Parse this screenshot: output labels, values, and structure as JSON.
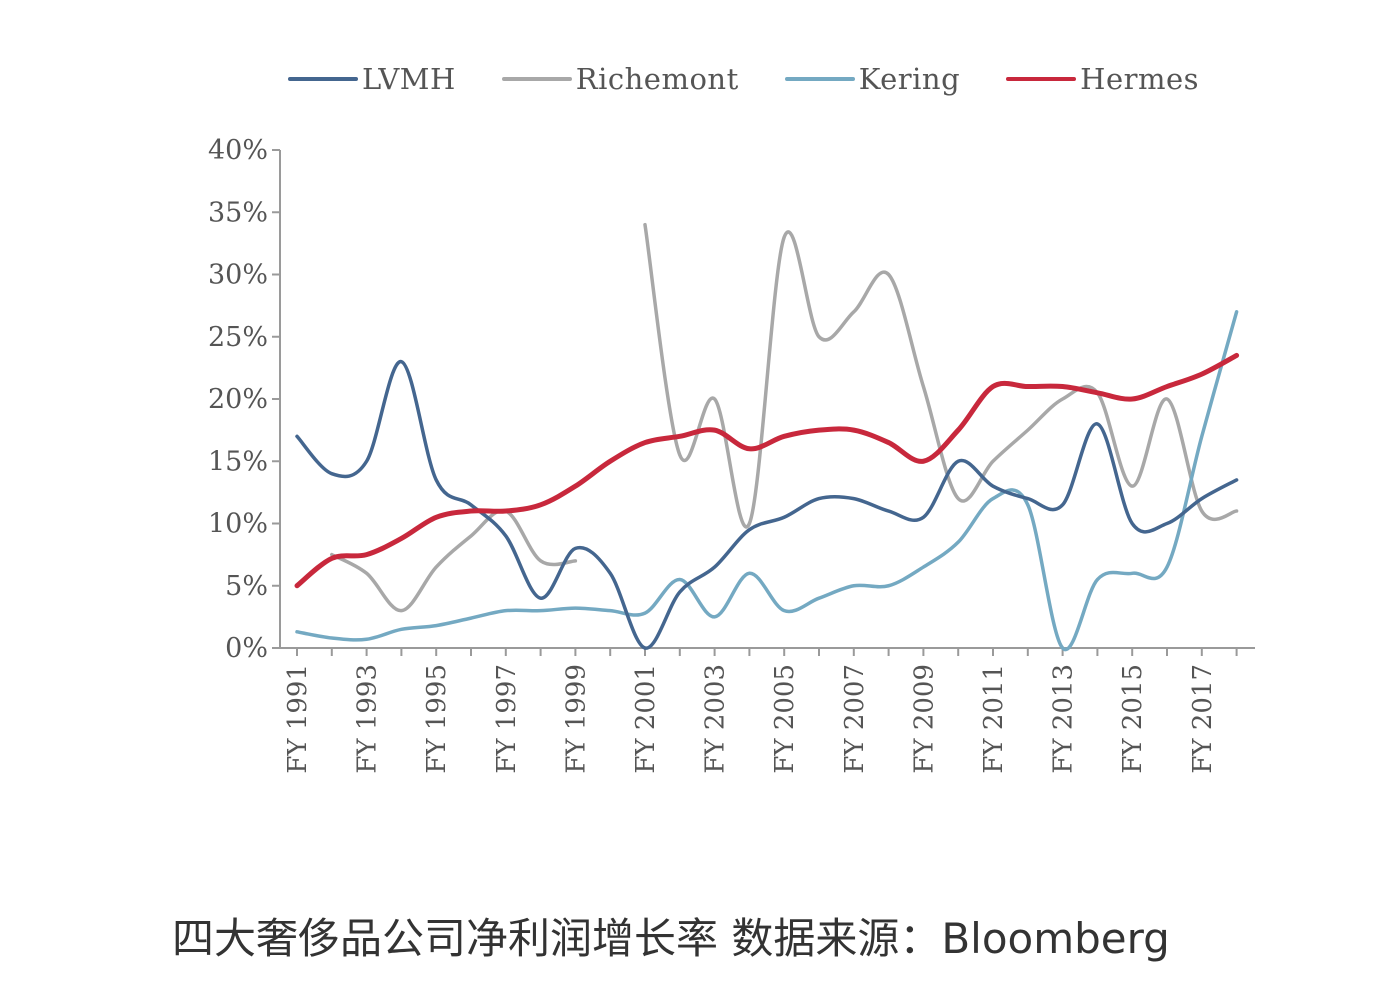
{
  "caption": "四大奢侈品公司净利润增长率 数据来源：Bloomberg",
  "chart_data": {
    "type": "line",
    "title": "",
    "xlabel": "",
    "ylabel": "",
    "x": [
      1991,
      1992,
      1993,
      1994,
      1995,
      1996,
      1997,
      1998,
      1999,
      2000,
      2001,
      2002,
      2003,
      2004,
      2005,
      2006,
      2007,
      2008,
      2009,
      2010,
      2011,
      2012,
      2013,
      2014,
      2015,
      2016,
      2017,
      2018
    ],
    "x_tick_labels": [
      "FY 1991",
      "FY 1993",
      "FY 1995",
      "FY 1997",
      "FY 1999",
      "FY 2001",
      "FY 2003",
      "FY 2005",
      "FY 2007",
      "FY 2009",
      "FY 2011",
      "FY 2013",
      "FY 2015",
      "FY 2017"
    ],
    "y_tick_labels": [
      "0%",
      "5%",
      "10%",
      "15%",
      "20%",
      "25%",
      "30%",
      "35%",
      "40%"
    ],
    "ylim": [
      0,
      40
    ],
    "grid": false,
    "legend_position": "top",
    "series": [
      {
        "name": "LVMH",
        "color": "#44668f",
        "values": [
          17,
          14,
          15,
          23,
          13.5,
          11.5,
          9,
          4,
          8,
          6,
          0,
          4.5,
          6.5,
          9.5,
          10.5,
          12,
          12,
          11,
          10.5,
          15,
          13,
          12,
          11.5,
          18,
          10,
          10,
          12,
          13.5
        ]
      },
      {
        "name": "Richemont",
        "color": "#a8a8a8",
        "values": [
          null,
          7.5,
          6,
          3,
          6.5,
          9,
          11,
          7,
          7,
          null,
          34,
          15.5,
          20,
          10,
          33,
          25,
          27,
          30,
          21,
          12,
          15,
          17.5,
          20,
          20.5,
          13,
          20,
          11,
          11
        ]
      },
      {
        "name": "Kering",
        "color": "#74a9c2",
        "values": [
          1.3,
          0.8,
          0.7,
          1.5,
          1.8,
          2.4,
          3,
          3,
          3.2,
          3,
          2.8,
          5.5,
          2.5,
          6,
          3,
          4,
          5,
          5,
          6.5,
          8.5,
          12,
          11.5,
          0,
          5.5,
          6,
          6.5,
          17,
          27
        ]
      },
      {
        "name": "Hermes",
        "color": "#c8283c",
        "values": [
          5,
          7.2,
          7.5,
          8.8,
          10.5,
          11,
          11,
          11.5,
          13,
          15,
          16.5,
          17,
          17.5,
          16,
          17,
          17.5,
          17.5,
          16.5,
          15,
          17.5,
          21,
          21,
          21,
          20.5,
          20,
          21,
          22,
          23.5
        ]
      }
    ]
  }
}
